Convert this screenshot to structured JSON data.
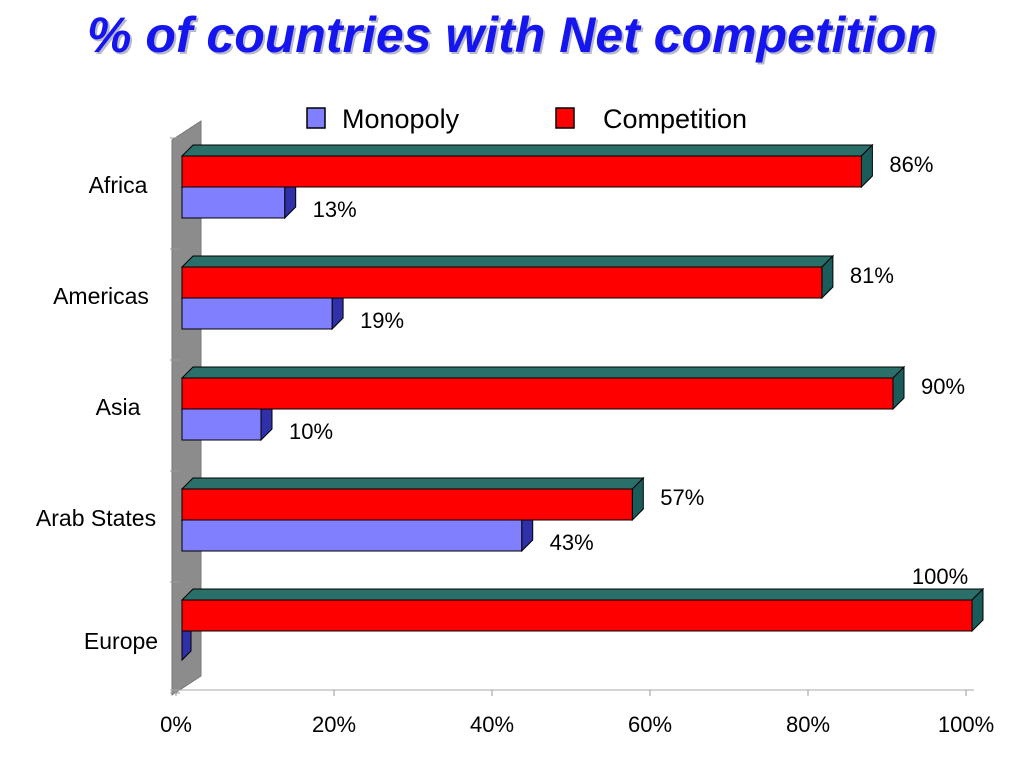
{
  "title": "% of countries with Net competition",
  "chart_data": {
    "type": "bar",
    "orientation": "horizontal",
    "title": "% of countries with Net competition",
    "categories": [
      "Africa",
      "Americas",
      "Asia",
      "Arab States",
      "Europe"
    ],
    "series": [
      {
        "name": "Monopoly",
        "color": "#8080ff",
        "values": [
          13,
          19,
          10,
          43,
          0
        ],
        "labels": [
          "13%",
          "19%",
          "10%",
          "43%",
          ""
        ]
      },
      {
        "name": "Competition",
        "color": "#ff0000",
        "values": [
          86,
          81,
          90,
          57,
          100
        ],
        "labels": [
          "86%",
          "81%",
          "90%",
          "57%",
          "100%"
        ]
      }
    ],
    "xlim": [
      0,
      100
    ],
    "xticks": [
      "0%",
      "20%",
      "40%",
      "60%",
      "80%",
      "100%"
    ],
    "xlabel": "",
    "ylabel": "",
    "legend": "top",
    "grid": false,
    "style": "3d"
  }
}
